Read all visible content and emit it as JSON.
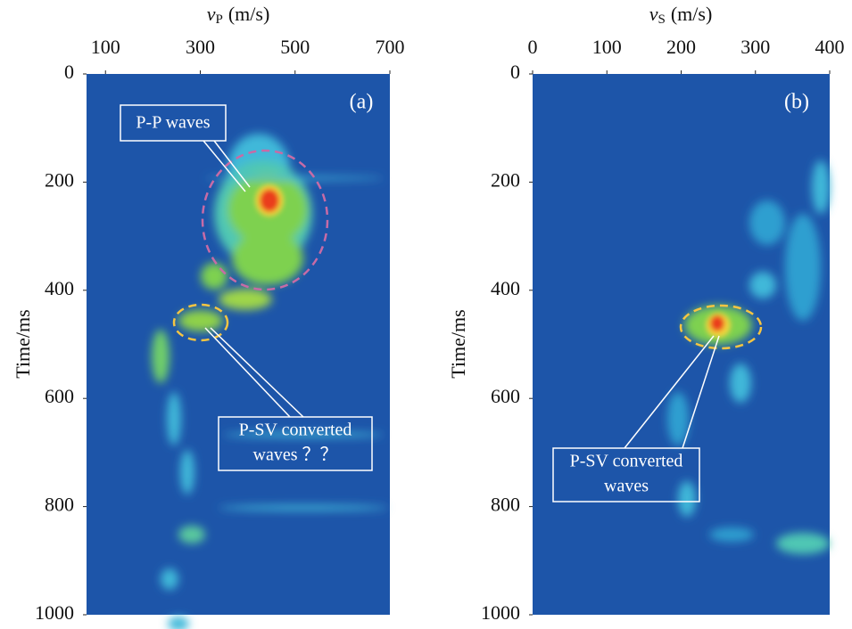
{
  "chart_data": [
    {
      "type": "heatmap",
      "panel_label": "(a)",
      "x_label": {
        "symbol": "v",
        "subscript": "P",
        "unit": "(m/s)"
      },
      "y_label": "Time/ms",
      "xlim": [
        60,
        700
      ],
      "xticks": [
        100,
        300,
        500,
        700
      ],
      "ylim": [
        0,
        1000
      ],
      "yticks": [
        0,
        200,
        400,
        600,
        800,
        1000
      ],
      "annotations": [
        [
          "P-P waves"
        ],
        [
          "P-SV converted",
          "waves ？？"
        ]
      ]
    },
    {
      "type": "heatmap",
      "panel_label": "(b)",
      "x_label": {
        "symbol": "v",
        "subscript": "S",
        "unit": "(m/s)"
      },
      "y_label": "Time/ms",
      "xlim": [
        0,
        400
      ],
      "xticks": [
        0,
        100,
        200,
        300,
        400
      ],
      "ylim": [
        0,
        1000
      ],
      "yticks": [
        0,
        200,
        400,
        600,
        800,
        1000
      ],
      "annotations": [
        [
          "P-SV converted",
          "waves"
        ]
      ]
    }
  ]
}
